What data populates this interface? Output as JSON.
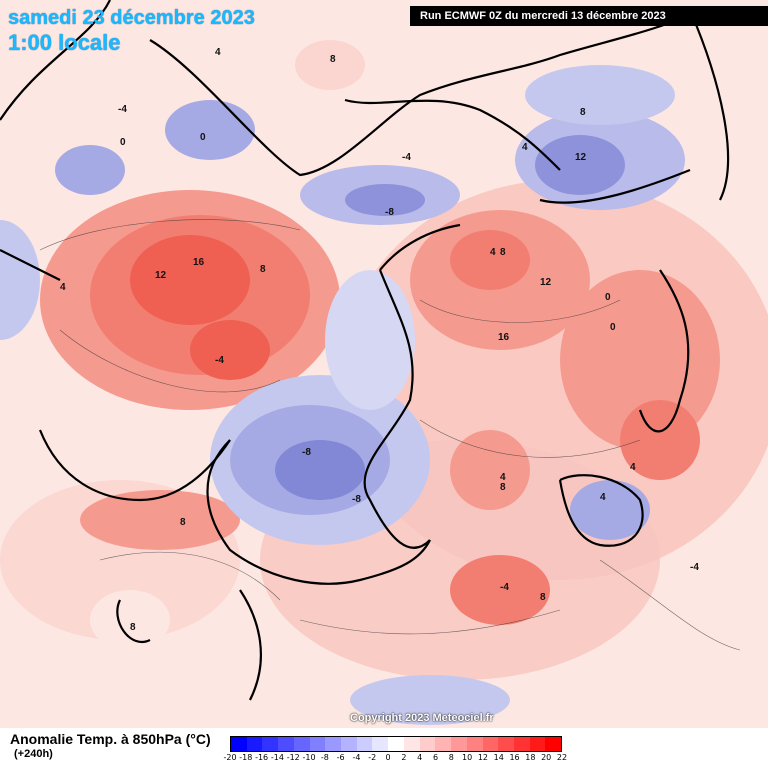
{
  "header": {
    "date": "samedi 23 décembre 2023",
    "time": "1:00 locale",
    "run": "Run ECMWF 0Z du mercredi 13 décembre 2023"
  },
  "footer": {
    "variable": "Anomalie Temp. à 850hPa (°C)",
    "lead": "(+240h)",
    "copyright": "Copyright 2023 Meteociel.fr"
  },
  "legend": {
    "values": [
      "-20",
      "-18",
      "-16",
      "-14",
      "-12",
      "-10",
      "-8",
      "-6",
      "-4",
      "-2",
      "0",
      "2",
      "4",
      "6",
      "8",
      "10",
      "12",
      "14",
      "16",
      "18",
      "20",
      "22"
    ],
    "colors": [
      "#0000ff",
      "#1a1aff",
      "#3333ff",
      "#4d4dff",
      "#6666ff",
      "#8080ff",
      "#9999ff",
      "#b3b3ff",
      "#ccccff",
      "#e6e6ff",
      "#ffffff",
      "#ffe6e6",
      "#ffcccc",
      "#ffb3b3",
      "#ff9999",
      "#ff8080",
      "#ff6666",
      "#ff4d4d",
      "#ff3333",
      "#ff1a1a",
      "#ff0000"
    ]
  },
  "map_labels": [
    "0",
    "4",
    "-4",
    "8",
    "-8",
    "12",
    "16",
    "0",
    "4",
    "8",
    "-4",
    "-8",
    "4",
    "8",
    "12",
    "16",
    "8",
    "12",
    "4",
    "-4",
    "8",
    "-8",
    "0",
    "4",
    "8",
    "-4",
    "8",
    "4",
    "0",
    "-4",
    "4",
    "8"
  ]
}
